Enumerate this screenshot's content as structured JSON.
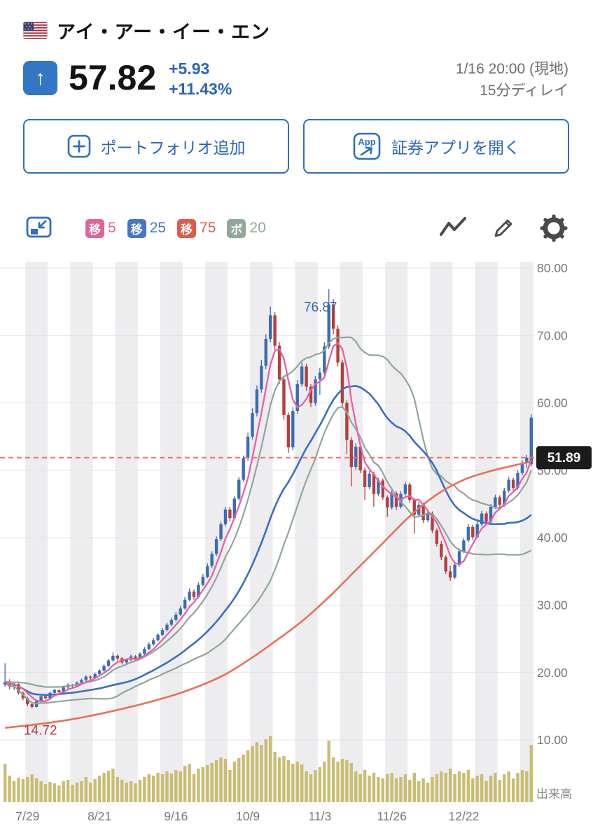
{
  "header": {
    "title": "アイ・アー・イー・エン",
    "arrow": "↑",
    "price": "57.82",
    "change": "+5.93",
    "change_pct": "+11.43%",
    "timestamp": "1/16 20:00 (現地)",
    "delay": "15分ディレイ",
    "accent_blue": "#2a66b5"
  },
  "actions": {
    "add_portfolio": "ポートフォリオ追加",
    "open_broker_app": "証券アプリを開く",
    "app_icon_text": "App"
  },
  "toolbar": {
    "legend": [
      {
        "badge": "移",
        "value": "5",
        "color": "#e0639c"
      },
      {
        "badge": "移",
        "value": "25",
        "color": "#4478c4"
      },
      {
        "badge": "移",
        "value": "75",
        "color": "#dd5c4c"
      },
      {
        "badge": "ボ",
        "value": "20",
        "color": "#8fa89a"
      }
    ]
  },
  "chart_data": {
    "type": "candlestick",
    "ylim": [
      10,
      80
    ],
    "y_axis_labels": [
      "80.00",
      "70.00",
      "60.00",
      "50.00",
      "40.00",
      "30.00",
      "20.00",
      "10.00"
    ],
    "x_ticks": [
      [
        5,
        "7/29"
      ],
      [
        21,
        "8/21"
      ],
      [
        38,
        "9/16"
      ],
      [
        54,
        "10/9"
      ],
      [
        70,
        "11/3"
      ],
      [
        86,
        "11/26"
      ],
      [
        102,
        "12/22"
      ]
    ],
    "price_line_value": 51.89,
    "price_line_label": "51.89",
    "annotation_high": {
      "label": "76.87",
      "bar": 72,
      "price": 76.87
    },
    "annotation_low": {
      "label": "14.72",
      "bar": 6,
      "price": 14.72
    },
    "volume_label": "出来高",
    "overlays": {
      "ma5_period": 5,
      "ma25_period": 25,
      "ma75_period": 75,
      "bollinger_period": 20,
      "bollinger_mult": 1
    },
    "ma75_points": [
      [
        0,
        11.8
      ],
      [
        8,
        12.4
      ],
      [
        16,
        13.2
      ],
      [
        24,
        14.3
      ],
      [
        32,
        15.6
      ],
      [
        40,
        17.2
      ],
      [
        48,
        19.4
      ],
      [
        54,
        21.8
      ],
      [
        60,
        24.6
      ],
      [
        66,
        27.6
      ],
      [
        72,
        31.2
      ],
      [
        78,
        35.2
      ],
      [
        84,
        39.2
      ],
      [
        90,
        43.2
      ],
      [
        96,
        46.4
      ],
      [
        102,
        48.6
      ],
      [
        108,
        49.9
      ],
      [
        113,
        50.7
      ],
      [
        117,
        51.3
      ]
    ],
    "colors": {
      "up": "#3a6cb4",
      "down": "#b2403d",
      "ma5": "#ea5fa2",
      "ma25": "#3a6fc0",
      "ma75": "#ee6e55",
      "bollinger": "#8fa698",
      "price_line": "#ef7464",
      "price_tag_bg": "#1b1b1d",
      "price_tag_text": "#ffffff",
      "volume": "#c9bd72",
      "shading": "#ededf0",
      "grid": "#e2e2e5",
      "axis_text": "#777777",
      "annotation_high": "#2a66b5",
      "annotation_low": "#a8403c"
    },
    "candles": [
      [
        18.2,
        21.4,
        17.9,
        18.6
      ],
      [
        18.6,
        19.0,
        17.5,
        17.9
      ],
      [
        17.9,
        18.6,
        17.4,
        18.3
      ],
      [
        18.3,
        18.4,
        16.7,
        17.0
      ],
      [
        17.0,
        17.2,
        15.9,
        16.2
      ],
      [
        16.2,
        16.4,
        15.0,
        15.3
      ],
      [
        15.3,
        15.6,
        14.72,
        14.9
      ],
      [
        14.9,
        16.0,
        14.8,
        15.8
      ],
      [
        15.8,
        16.7,
        15.6,
        16.5
      ],
      [
        16.5,
        16.8,
        16.0,
        16.2
      ],
      [
        16.2,
        17.2,
        16.1,
        17.0
      ],
      [
        17.0,
        17.6,
        16.8,
        17.4
      ],
      [
        17.4,
        17.5,
        16.9,
        17.1
      ],
      [
        17.1,
        18.0,
        17.0,
        17.8
      ],
      [
        17.8,
        18.4,
        17.6,
        18.2
      ],
      [
        18.2,
        18.3,
        17.7,
        18.0
      ],
      [
        18.0,
        18.7,
        17.9,
        18.5
      ],
      [
        18.5,
        19.1,
        18.3,
        18.9
      ],
      [
        18.9,
        19.6,
        18.7,
        19.4
      ],
      [
        19.4,
        19.6,
        18.9,
        19.2
      ],
      [
        19.2,
        20.0,
        19.0,
        19.8
      ],
      [
        19.8,
        20.5,
        19.6,
        20.3
      ],
      [
        20.3,
        21.2,
        20.1,
        21.0
      ],
      [
        21.0,
        22.0,
        20.8,
        21.8
      ],
      [
        21.8,
        23.0,
        21.6,
        22.5
      ],
      [
        22.5,
        22.7,
        21.8,
        22.1
      ],
      [
        22.1,
        22.3,
        21.2,
        21.5
      ],
      [
        21.5,
        22.1,
        21.3,
        21.9
      ],
      [
        21.9,
        22.7,
        21.7,
        22.4
      ],
      [
        22.4,
        22.6,
        21.7,
        22.0
      ],
      [
        22.0,
        23.0,
        21.9,
        22.8
      ],
      [
        22.8,
        23.8,
        22.6,
        23.5
      ],
      [
        23.5,
        24.5,
        23.3,
        24.2
      ],
      [
        24.2,
        25.1,
        24.0,
        24.8
      ],
      [
        24.8,
        25.9,
        24.6,
        25.6
      ],
      [
        25.6,
        26.6,
        25.4,
        26.3
      ],
      [
        26.3,
        27.4,
        26.1,
        27.1
      ],
      [
        27.1,
        28.1,
        26.9,
        27.8
      ],
      [
        27.8,
        29.0,
        27.6,
        28.6
      ],
      [
        28.6,
        29.9,
        28.4,
        29.5
      ],
      [
        29.5,
        31.2,
        29.3,
        30.8
      ],
      [
        30.8,
        32.5,
        30.6,
        32.0
      ],
      [
        32.0,
        32.3,
        30.8,
        31.2
      ],
      [
        31.2,
        33.4,
        31.0,
        33.0
      ],
      [
        33.0,
        34.6,
        32.8,
        34.2
      ],
      [
        34.2,
        36.2,
        34.0,
        35.8
      ],
      [
        35.8,
        38.0,
        35.5,
        37.6
      ],
      [
        37.6,
        40.2,
        37.3,
        39.8
      ],
      [
        39.8,
        42.4,
        39.5,
        42.0
      ],
      [
        42.0,
        44.6,
        41.7,
        44.2
      ],
      [
        44.2,
        44.6,
        42.4,
        42.9
      ],
      [
        42.9,
        46.2,
        42.6,
        45.8
      ],
      [
        45.8,
        49.0,
        45.5,
        48.6
      ],
      [
        48.6,
        52.2,
        48.3,
        51.8
      ],
      [
        51.8,
        55.6,
        51.4,
        55.0
      ],
      [
        55.0,
        59.2,
        54.6,
        58.5
      ],
      [
        58.5,
        62.6,
        58.0,
        62.0
      ],
      [
        62.0,
        66.4,
        61.5,
        65.5
      ],
      [
        65.5,
        70.2,
        65.0,
        69.5
      ],
      [
        69.5,
        74.3,
        69.0,
        73.0
      ],
      [
        73.0,
        73.5,
        67.8,
        68.5
      ],
      [
        68.5,
        69.0,
        62.8,
        63.5
      ],
      [
        63.5,
        64.0,
        57.5,
        58.2
      ],
      [
        58.2,
        58.6,
        52.6,
        53.4
      ],
      [
        53.4,
        59.4,
        53.0,
        58.8
      ],
      [
        58.8,
        63.4,
        58.4,
        62.8
      ],
      [
        62.8,
        66.0,
        62.4,
        65.4
      ],
      [
        65.4,
        65.8,
        61.8,
        62.4
      ],
      [
        62.4,
        62.8,
        59.4,
        60.0
      ],
      [
        60.0,
        64.0,
        59.6,
        63.5
      ],
      [
        63.5,
        65.2,
        61.2,
        64.5
      ],
      [
        64.5,
        69.0,
        64.1,
        68.4
      ],
      [
        68.4,
        76.87,
        68.0,
        74.6
      ],
      [
        74.6,
        75.4,
        70.2,
        71.0
      ],
      [
        71.0,
        71.5,
        65.4,
        66.0
      ],
      [
        66.0,
        66.4,
        59.4,
        60.0
      ],
      [
        60.0,
        60.4,
        52.4,
        54.5
      ],
      [
        54.5,
        54.9,
        47.6,
        50.5
      ],
      [
        50.5,
        54.0,
        50.1,
        53.5
      ],
      [
        53.5,
        53.8,
        49.6,
        50.0
      ],
      [
        50.0,
        50.4,
        45.6,
        47.5
      ],
      [
        47.5,
        49.9,
        47.2,
        49.5
      ],
      [
        49.5,
        49.8,
        44.6,
        46.5
      ],
      [
        46.5,
        48.9,
        46.2,
        48.5
      ],
      [
        48.5,
        48.8,
        45.6,
        46.0
      ],
      [
        46.0,
        46.3,
        43.1,
        44.5
      ],
      [
        44.5,
        47.0,
        44.2,
        46.6
      ],
      [
        46.6,
        46.9,
        44.1,
        44.6
      ],
      [
        44.6,
        46.9,
        44.3,
        46.5
      ],
      [
        46.5,
        48.3,
        46.2,
        47.9
      ],
      [
        47.9,
        48.2,
        45.2,
        45.6
      ],
      [
        45.6,
        45.9,
        40.6,
        43.4
      ],
      [
        43.4,
        45.3,
        43.1,
        44.9
      ],
      [
        44.9,
        45.2,
        42.2,
        42.6
      ],
      [
        42.6,
        44.0,
        42.3,
        43.6
      ],
      [
        43.6,
        43.9,
        40.7,
        41.1
      ],
      [
        41.1,
        41.4,
        38.7,
        39.1
      ],
      [
        39.1,
        39.5,
        36.7,
        37.1
      ],
      [
        37.1,
        37.4,
        34.6,
        35.0
      ],
      [
        35.0,
        35.8,
        33.6,
        34.1
      ],
      [
        34.1,
        36.4,
        33.9,
        36.0
      ],
      [
        36.0,
        38.4,
        35.7,
        38.0
      ],
      [
        38.0,
        40.0,
        37.7,
        39.6
      ],
      [
        39.6,
        42.0,
        39.3,
        41.6
      ],
      [
        41.6,
        41.9,
        39.7,
        40.1
      ],
      [
        40.1,
        42.4,
        39.9,
        42.0
      ],
      [
        42.0,
        44.0,
        41.7,
        43.6
      ],
      [
        43.6,
        43.9,
        42.0,
        42.4
      ],
      [
        42.4,
        45.0,
        42.1,
        44.6
      ],
      [
        44.6,
        46.4,
        44.3,
        46.0
      ],
      [
        46.0,
        46.3,
        44.5,
        44.9
      ],
      [
        44.9,
        47.4,
        44.6,
        47.0
      ],
      [
        47.0,
        49.0,
        46.7,
        48.6
      ],
      [
        48.6,
        48.9,
        47.0,
        47.4
      ],
      [
        47.4,
        50.0,
        47.1,
        49.6
      ],
      [
        49.6,
        51.5,
        49.3,
        51.1
      ],
      [
        51.1,
        52.3,
        50.4,
        51.89
      ],
      [
        50.9,
        58.3,
        50.6,
        57.82
      ]
    ],
    "volumes": [
      55,
      38,
      30,
      35,
      33,
      36,
      40,
      34,
      30,
      26,
      29,
      27,
      24,
      30,
      32,
      25,
      28,
      30,
      36,
      28,
      33,
      38,
      42,
      45,
      48,
      36,
      32,
      28,
      30,
      27,
      32,
      36,
      40,
      38,
      42,
      40,
      44,
      41,
      46,
      44,
      52,
      55,
      40,
      48,
      50,
      53,
      56,
      60,
      64,
      62,
      46,
      58,
      63,
      68,
      74,
      80,
      86,
      82,
      90,
      95,
      72,
      64,
      66,
      60,
      55,
      58,
      54,
      44,
      40,
      46,
      50,
      58,
      88,
      64,
      58,
      62,
      60,
      56,
      44,
      40,
      46,
      38,
      42,
      36,
      34,
      40,
      42,
      34,
      36,
      40,
      32,
      42,
      30,
      34,
      28,
      36,
      40,
      44,
      42,
      48,
      40,
      44,
      42,
      46,
      34,
      38,
      40,
      30,
      38,
      42,
      32,
      40,
      44,
      34,
      42,
      46,
      44,
      82
    ]
  }
}
